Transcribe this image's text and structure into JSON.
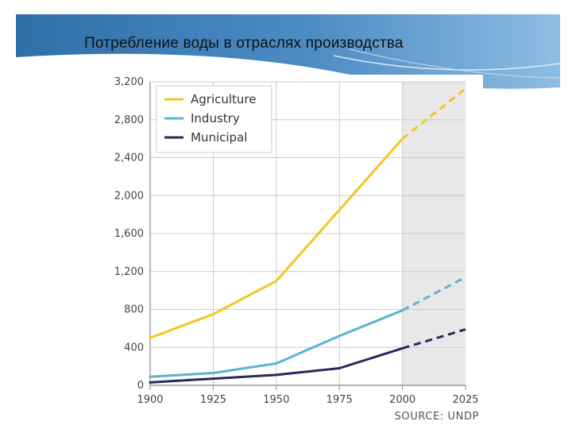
{
  "slide": {
    "title": "Потребление воды в отраслях производства"
  },
  "chart_data": {
    "type": "line",
    "title": "Потребление воды в отраслях производства",
    "xlabel": "",
    "ylabel": "",
    "x": [
      1900,
      1925,
      1950,
      1975,
      2000,
      2025
    ],
    "x_ticks": [
      "1900",
      "1925",
      "1950",
      "1975",
      "2000",
      "2025"
    ],
    "y_ticks": [
      "0",
      "400",
      "800",
      "1,200",
      "1,600",
      "2,000",
      "2,400",
      "2,800",
      "3,200"
    ],
    "y_tick_values": [
      0,
      400,
      800,
      1200,
      1600,
      2000,
      2400,
      2800,
      3200
    ],
    "xlim": [
      1900,
      2025
    ],
    "ylim": [
      0,
      3200
    ],
    "projection_start": 2000,
    "grid": true,
    "legend_position": "top-left",
    "source": "SOURCE: UNDP",
    "series": [
      {
        "name": "Agriculture",
        "color": "#f2c722",
        "values": [
          500,
          750,
          1100,
          1850,
          2600,
          3130
        ]
      },
      {
        "name": "Industry",
        "color": "#5ab4d0",
        "values": [
          90,
          130,
          230,
          520,
          790,
          1140
        ]
      },
      {
        "name": "Municipal",
        "color": "#262b57",
        "values": [
          30,
          70,
          110,
          180,
          390,
          590
        ]
      }
    ]
  }
}
